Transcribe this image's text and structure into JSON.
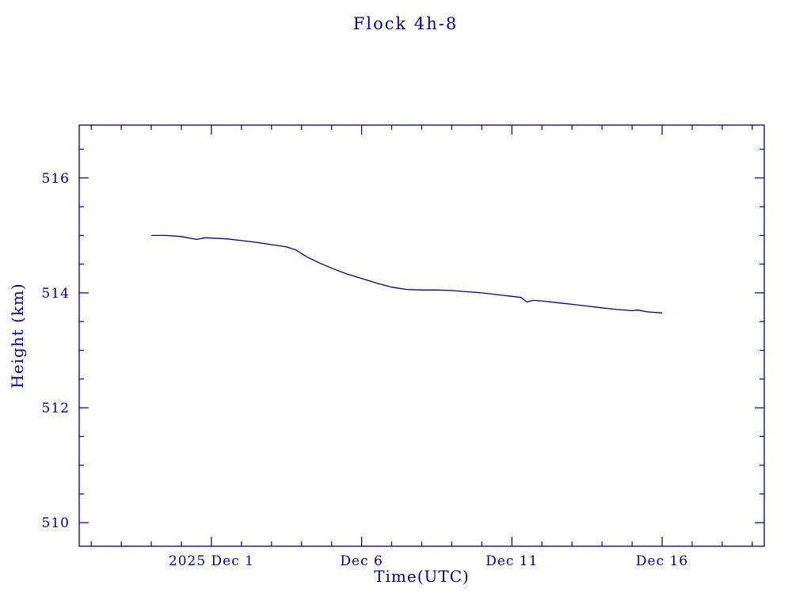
{
  "page": {
    "background": "#ffffff"
  },
  "chart_data": {
    "type": "line",
    "title": "Flock 4h-8",
    "xlabel": "Time(UTC)",
    "ylabel": "Height (km)",
    "legend": "none",
    "grid": false,
    "line_color": "#000080",
    "axis_color": "#000080",
    "text_color": "#000080",
    "x_encoding": "days relative to 2025 Dec 1 (0 = 2025 Nov 30)",
    "xlim": [
      -3.4,
      19.4
    ],
    "ylim": [
      509.59,
      516.92
    ],
    "x_major_ticks": [
      {
        "value": 1,
        "label": "2025 Dec 1"
      },
      {
        "value": 6,
        "label": "Dec 6"
      },
      {
        "value": 11,
        "label": "Dec 11"
      },
      {
        "value": 16,
        "label": "Dec 16"
      }
    ],
    "x_minor_step": 1,
    "y_major_ticks": [
      {
        "value": 510,
        "label": "510"
      },
      {
        "value": 512,
        "label": "512"
      },
      {
        "value": 514,
        "label": "514"
      },
      {
        "value": 516,
        "label": "516"
      }
    ],
    "y_minor_step": 0.5,
    "series": [
      {
        "name": "Flock 4h-8 height",
        "x": [
          -1.0,
          -0.5,
          0.0,
          0.5,
          0.8,
          1.5,
          2.0,
          2.5,
          3.0,
          3.5,
          3.8,
          4.2,
          4.6,
          5.0,
          5.5,
          6.0,
          6.5,
          7.0,
          7.5,
          8.0,
          8.5,
          9.0,
          9.5,
          10.0,
          10.5,
          11.0,
          11.3,
          11.5,
          11.7,
          12.0,
          12.5,
          13.0,
          13.5,
          14.0,
          14.5,
          15.0,
          15.2,
          15.5,
          16.0
        ],
        "y": [
          515.0,
          515.0,
          514.98,
          514.93,
          514.96,
          514.94,
          514.91,
          514.88,
          514.84,
          514.8,
          514.75,
          514.62,
          514.52,
          514.43,
          514.33,
          514.25,
          514.17,
          514.1,
          514.06,
          514.05,
          514.05,
          514.04,
          514.02,
          514.0,
          513.97,
          513.94,
          513.92,
          513.84,
          513.87,
          513.86,
          513.83,
          513.8,
          513.77,
          513.74,
          513.71,
          513.69,
          513.7,
          513.67,
          513.65
        ]
      }
    ]
  }
}
